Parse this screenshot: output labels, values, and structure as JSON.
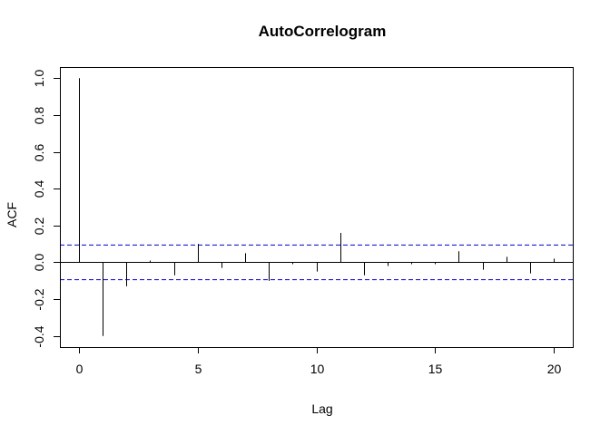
{
  "chart_data": {
    "type": "bar",
    "title": "AutoCorrelogram",
    "xlabel": "Lag",
    "ylabel": "ACF",
    "xlim": [
      -0.8,
      20.8
    ],
    "ylim": [
      -0.46,
      1.06
    ],
    "xticks": [
      0,
      5,
      10,
      15,
      20
    ],
    "xtick_labels": [
      "0",
      "5",
      "10",
      "15",
      "20"
    ],
    "yticks": [
      -0.4,
      -0.2,
      0.0,
      0.2,
      0.4,
      0.6,
      0.8,
      1.0
    ],
    "ytick_labels": [
      "-0.4",
      "-0.2",
      "0.0",
      "0.2",
      "0.4",
      "0.6",
      "0.8",
      "1.0"
    ],
    "x": [
      0,
      1,
      2,
      3,
      4,
      5,
      6,
      7,
      8,
      9,
      10,
      11,
      12,
      13,
      14,
      15,
      16,
      17,
      18,
      19,
      20
    ],
    "values": [
      1.0,
      -0.4,
      -0.13,
      0.01,
      -0.07,
      0.1,
      -0.03,
      0.05,
      -0.1,
      -0.01,
      -0.05,
      0.16,
      -0.07,
      -0.02,
      -0.01,
      -0.01,
      0.06,
      -0.04,
      0.03,
      -0.06,
      0.02
    ],
    "confidence_bounds": [
      0.094,
      -0.094
    ],
    "confidence_color": "#0000CD",
    "bar_color": "#000000",
    "grid": false
  }
}
